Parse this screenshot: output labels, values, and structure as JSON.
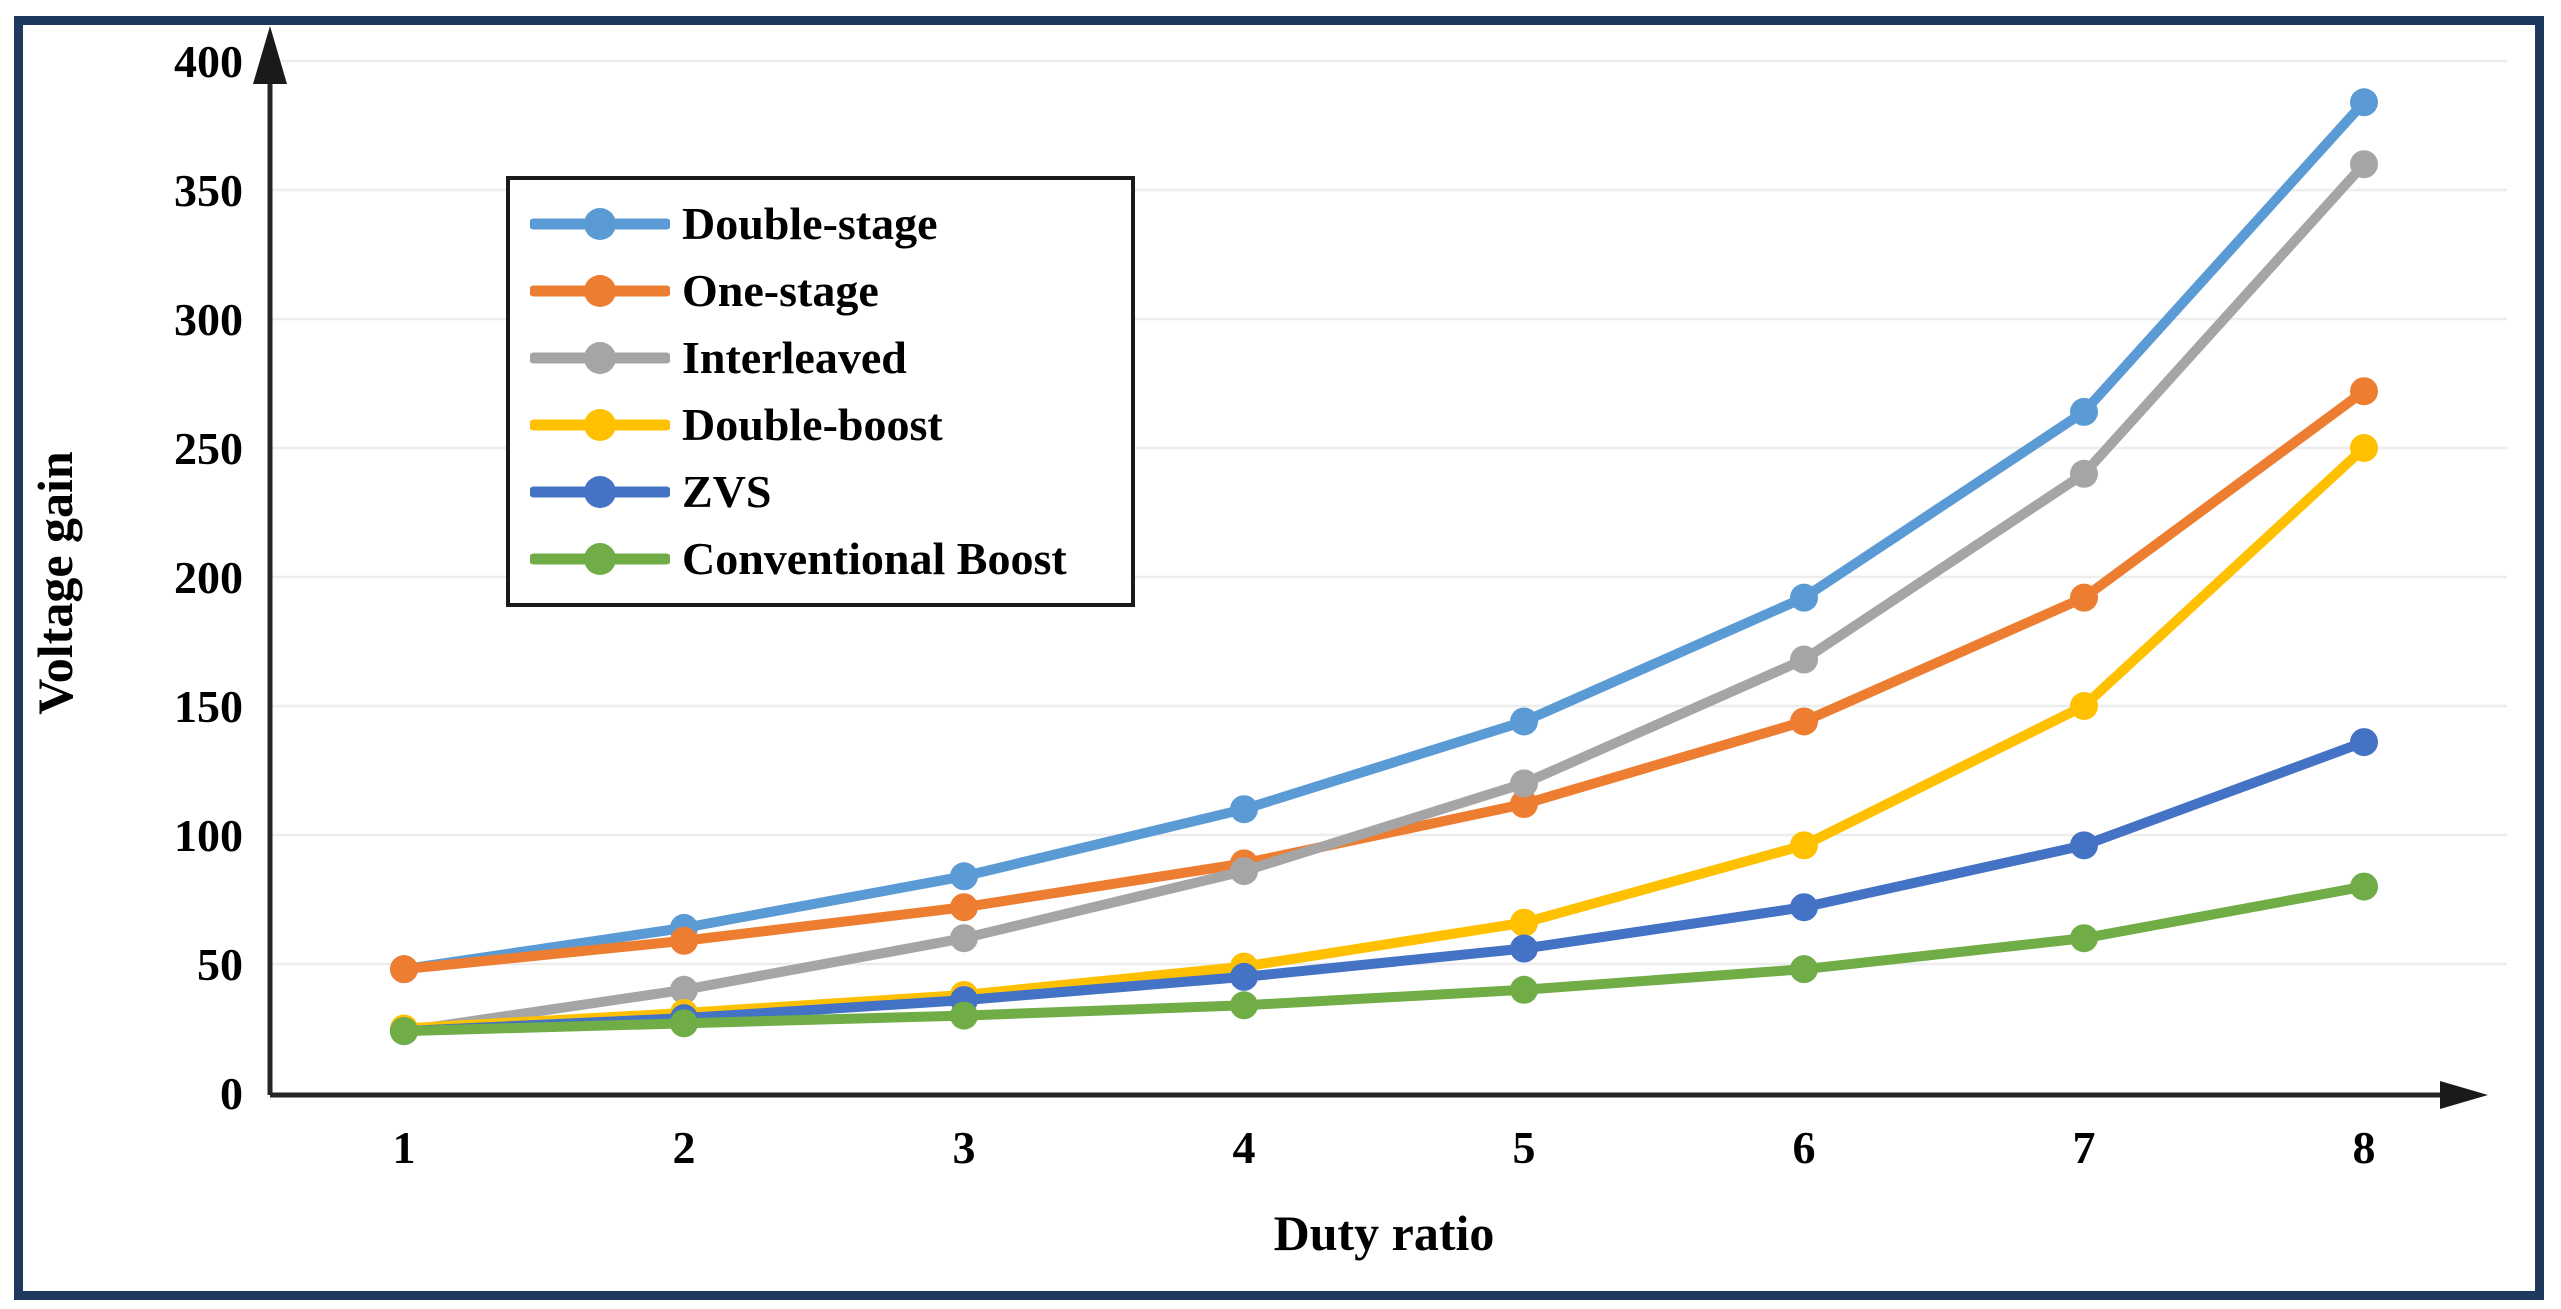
{
  "figure": {
    "background": "#ffffff",
    "frame_border_color": "#1d3a5e",
    "legend_border_color": "#1a1a1a",
    "gridline_color": "#ededed",
    "axis_color": "#262626",
    "text_color": "#000000"
  },
  "chart_data": {
    "type": "line",
    "title": "",
    "xlabel": "Duty ratio",
    "ylabel": "Voltage gain",
    "x": [
      1,
      2,
      3,
      4,
      5,
      6,
      7,
      8
    ],
    "ylim": [
      0,
      400
    ],
    "ytick_step": 50,
    "grid": true,
    "legend_position": "inside-top-left-box",
    "marker": "circle",
    "series": [
      {
        "name": "Double-stage",
        "color": "#5B9BD5",
        "values": [
          48,
          64,
          84,
          110,
          144,
          192,
          264,
          384
        ]
      },
      {
        "name": "One-stage",
        "color": "#ED7D31",
        "values": [
          48,
          59,
          72,
          89,
          112,
          144,
          192,
          272
        ]
      },
      {
        "name": "Interleaved",
        "color": "#A5A5A5",
        "values": [
          24,
          40,
          60,
          86,
          120,
          168,
          240,
          360
        ]
      },
      {
        "name": "Double-boost",
        "color": "#FFC000",
        "values": [
          25,
          31,
          38,
          49,
          66,
          96,
          150,
          250
        ]
      },
      {
        "name": "ZVS",
        "color": "#4472C4",
        "values": [
          24,
          29,
          36,
          45,
          56,
          72,
          96,
          136
        ]
      },
      {
        "name": "Conventional Boost",
        "color": "#70AD47",
        "values": [
          24,
          27,
          30,
          34,
          40,
          48,
          60,
          80
        ]
      }
    ]
  }
}
